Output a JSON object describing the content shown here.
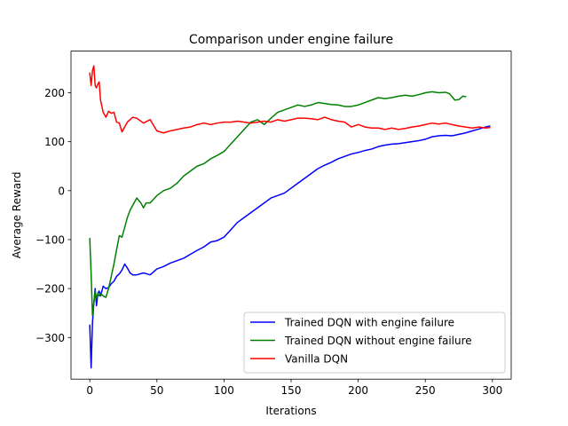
{
  "chart_data": {
    "type": "line",
    "title": "Comparison under engine failure",
    "xlabel": "Iterations",
    "ylabel": "Average Reward",
    "xlim": [
      -14,
      314
    ],
    "ylim": [
      -385,
      285
    ],
    "xticks": [
      0,
      50,
      100,
      150,
      200,
      250,
      300
    ],
    "yticks": [
      -300,
      -200,
      -100,
      0,
      100,
      200
    ],
    "grid": false,
    "legend_position": "lower-right",
    "series": [
      {
        "name": "Trained DQN with engine failure",
        "color": "#0000ff",
        "x": [
          0,
          1,
          2,
          3,
          4,
          5,
          6,
          7,
          8,
          10,
          12,
          14,
          16,
          18,
          20,
          22,
          24,
          26,
          28,
          30,
          32,
          35,
          40,
          45,
          50,
          55,
          60,
          65,
          70,
          75,
          80,
          85,
          90,
          95,
          100,
          105,
          110,
          115,
          120,
          125,
          130,
          135,
          140,
          145,
          150,
          155,
          160,
          165,
          170,
          175,
          180,
          185,
          190,
          195,
          200,
          205,
          210,
          215,
          220,
          225,
          230,
          235,
          240,
          245,
          250,
          255,
          260,
          265,
          270,
          275,
          280,
          285,
          290,
          295,
          298
        ],
        "y": [
          -275,
          -362,
          -270,
          -230,
          -200,
          -235,
          -210,
          -205,
          -215,
          -195,
          -200,
          -198,
          -190,
          -185,
          -175,
          -170,
          -162,
          -150,
          -158,
          -168,
          -172,
          -172,
          -168,
          -172,
          -160,
          -155,
          -148,
          -143,
          -138,
          -130,
          -122,
          -115,
          -105,
          -102,
          -95,
          -80,
          -65,
          -55,
          -45,
          -35,
          -25,
          -15,
          -10,
          -5,
          5,
          15,
          25,
          35,
          45,
          52,
          58,
          65,
          70,
          75,
          78,
          82,
          85,
          90,
          93,
          95,
          96,
          98,
          100,
          102,
          105,
          110,
          112,
          113,
          112,
          115,
          118,
          122,
          126,
          130,
          132
        ]
      },
      {
        "name": "Trained DQN without engine failure",
        "color": "#008000",
        "x": [
          0,
          1,
          2,
          3,
          4,
          5,
          6,
          7,
          8,
          10,
          12,
          14,
          16,
          18,
          20,
          22,
          24,
          26,
          28,
          30,
          32,
          35,
          38,
          40,
          42,
          45,
          50,
          55,
          60,
          65,
          70,
          75,
          80,
          85,
          90,
          95,
          100,
          105,
          110,
          115,
          120,
          125,
          130,
          135,
          140,
          145,
          150,
          155,
          160,
          165,
          170,
          175,
          180,
          185,
          190,
          195,
          200,
          205,
          210,
          215,
          220,
          225,
          230,
          235,
          240,
          245,
          250,
          255,
          260,
          265,
          268,
          272,
          275,
          278,
          280
        ],
        "y": [
          -98,
          -170,
          -255,
          -230,
          -205,
          -220,
          -210,
          -215,
          -210,
          -215,
          -218,
          -200,
          -175,
          -150,
          -120,
          -92,
          -95,
          -75,
          -55,
          -40,
          -30,
          -15,
          -25,
          -35,
          -25,
          -25,
          -10,
          0,
          5,
          15,
          30,
          40,
          50,
          55,
          65,
          72,
          80,
          95,
          110,
          125,
          140,
          145,
          135,
          148,
          160,
          165,
          170,
          175,
          172,
          175,
          180,
          178,
          176,
          175,
          172,
          172,
          175,
          180,
          185,
          190,
          188,
          190,
          193,
          195,
          193,
          196,
          200,
          202,
          200,
          201,
          198,
          185,
          186,
          193,
          192
        ]
      },
      {
        "name": "Vanilla DQN",
        "color": "#ff0000",
        "x": [
          0,
          1,
          2,
          3,
          4,
          5,
          6,
          7,
          8,
          10,
          12,
          14,
          16,
          18,
          20,
          22,
          24,
          26,
          28,
          30,
          32,
          35,
          40,
          45,
          50,
          55,
          60,
          65,
          70,
          75,
          80,
          85,
          90,
          95,
          100,
          105,
          110,
          115,
          120,
          125,
          130,
          135,
          140,
          145,
          150,
          155,
          160,
          165,
          170,
          175,
          180,
          185,
          190,
          195,
          200,
          205,
          210,
          215,
          220,
          225,
          230,
          235,
          240,
          245,
          250,
          255,
          260,
          265,
          270,
          275,
          280,
          285,
          290,
          295,
          298
        ],
        "y": [
          240,
          215,
          245,
          255,
          215,
          210,
          218,
          222,
          185,
          160,
          150,
          162,
          158,
          160,
          140,
          138,
          120,
          130,
          140,
          145,
          150,
          148,
          138,
          145,
          122,
          118,
          122,
          125,
          128,
          130,
          135,
          138,
          135,
          138,
          140,
          140,
          142,
          140,
          138,
          140,
          142,
          140,
          145,
          142,
          145,
          148,
          148,
          147,
          145,
          150,
          145,
          142,
          140,
          130,
          135,
          130,
          128,
          128,
          125,
          128,
          125,
          127,
          130,
          132,
          135,
          138,
          136,
          138,
          135,
          132,
          130,
          128,
          130,
          128,
          129
        ]
      }
    ]
  }
}
